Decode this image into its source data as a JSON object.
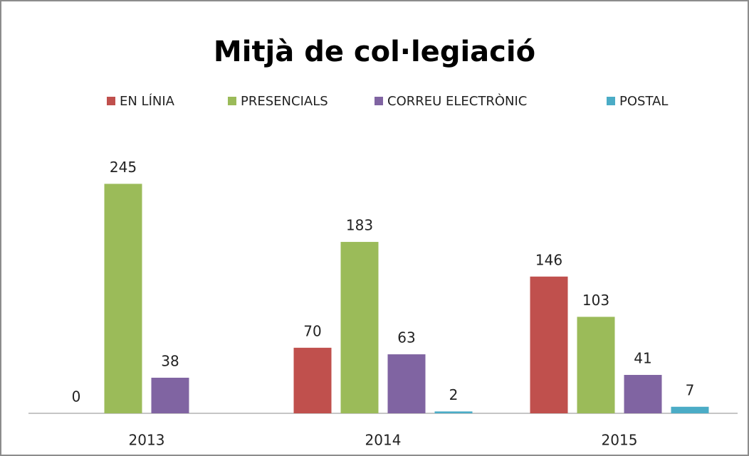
{
  "chart_data": {
    "type": "bar",
    "title": "Mitjà de col·legiació",
    "categories": [
      "2013",
      "2014",
      "2015"
    ],
    "series": [
      {
        "name": "EN LÍNIA",
        "color": "#c0504d",
        "values": [
          0,
          70,
          146
        ]
      },
      {
        "name": "PRESENCIALS",
        "color": "#9bbb59",
        "values": [
          245,
          183,
          103
        ]
      },
      {
        "name": "CORREU ELECTRÒNIC",
        "color": "#8064a2",
        "values": [
          38,
          63,
          41
        ]
      },
      {
        "name": "POSTAL",
        "color": "#4bacc6",
        "values": [
          null,
          2,
          7
        ]
      }
    ],
    "ylim": [
      0,
      300
    ],
    "legend": "top"
  }
}
